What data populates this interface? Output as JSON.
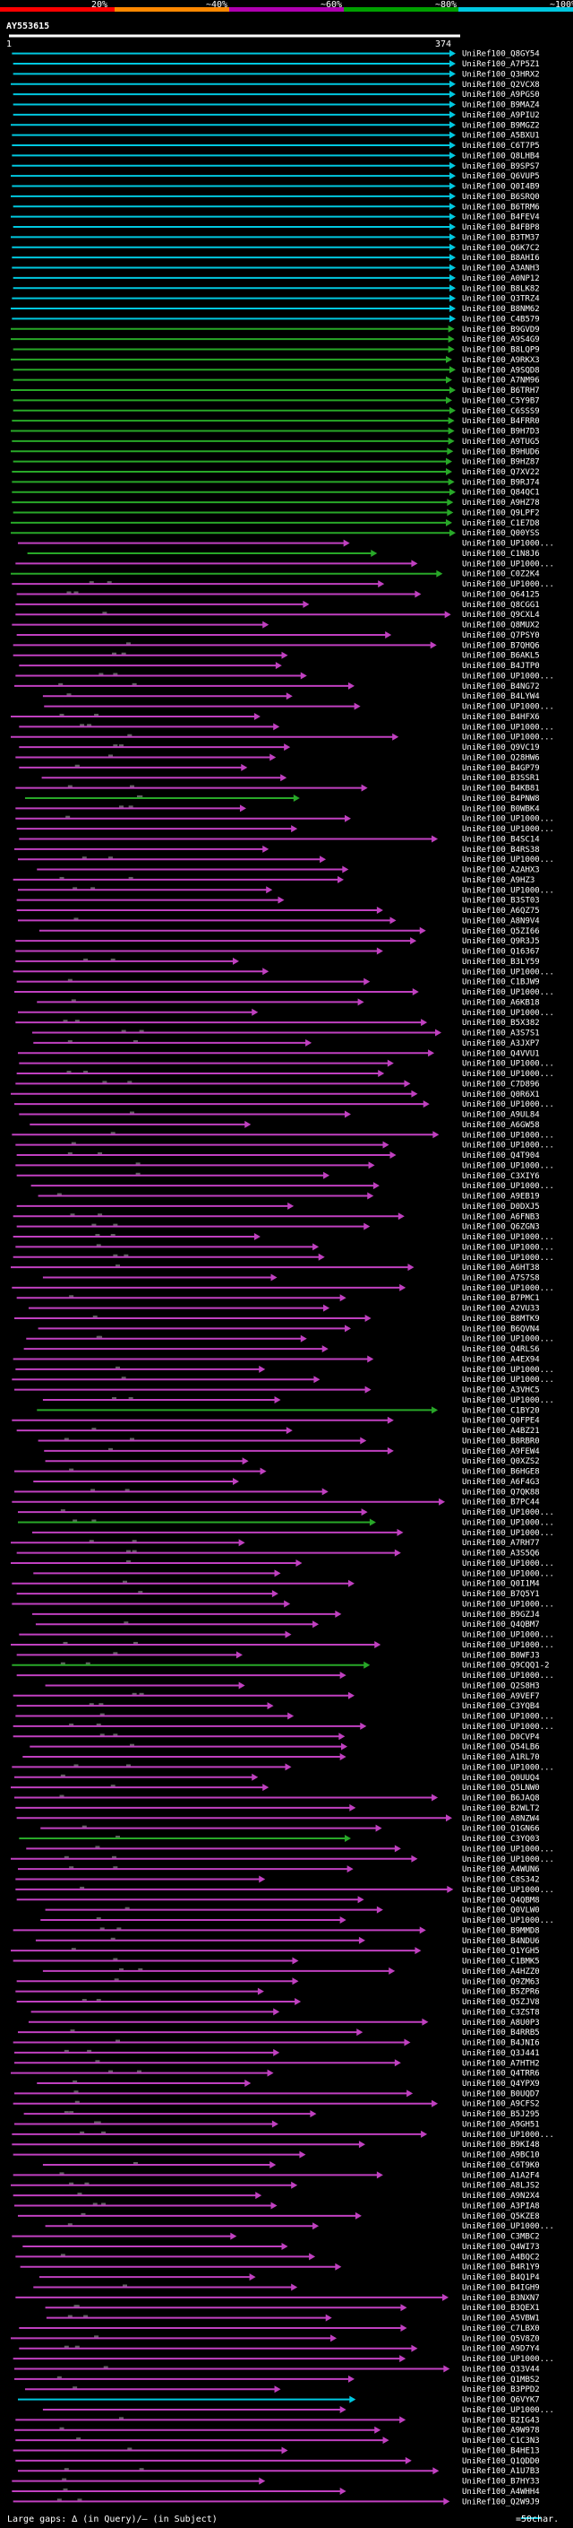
{
  "query": {
    "id": "AY553615",
    "start": "1",
    "end": "374"
  },
  "identity_scale": {
    "labels": [
      "20%",
      "~40%",
      "~60%",
      "~80%",
      "~100%"
    ],
    "colors": [
      "#ff0000",
      "#ff8800",
      "#b000b0",
      "#00a000",
      "#00c8e0"
    ]
  },
  "legend": {
    "text": "Large gaps: ∆ (in Query)/— (in Subject)",
    "scale": "=50char."
  },
  "colors": {
    "background": "#000000",
    "cyan": "#00c8e0",
    "green": "#28a828",
    "magenta": "#c040c0",
    "gap": "#606060",
    "text": "#ffffff"
  },
  "hits": []
}
